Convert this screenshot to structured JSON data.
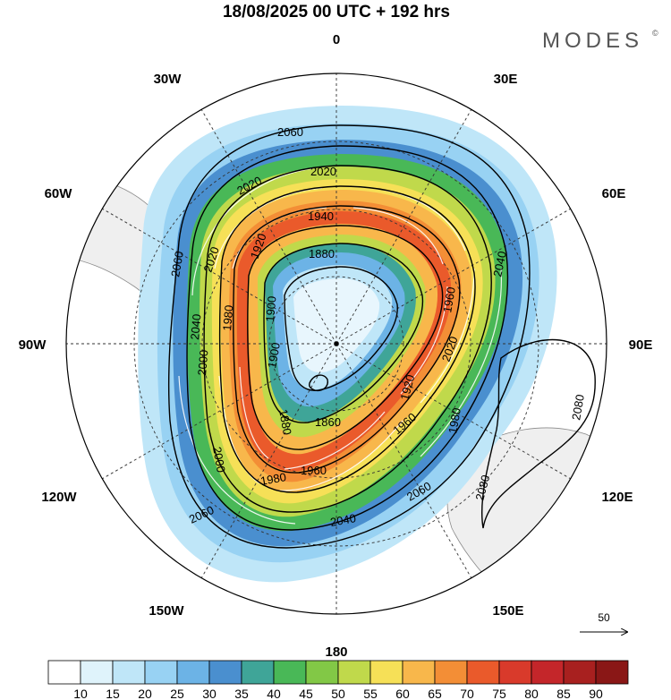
{
  "title": "18/08/2025  00 UTC  + 192 hrs",
  "brand": "MODES",
  "brand_mark": "©",
  "meridian_labels": {
    "top": "0",
    "bottom": "180",
    "left": "90W",
    "right": "90E",
    "upper_left_1": "30W",
    "upper_left_2": "60W",
    "upper_right_1": "30E",
    "upper_right_2": "60E",
    "lower_left_1": "120W",
    "lower_left_2": "150W",
    "lower_right_1": "120E",
    "lower_right_2": "150E"
  },
  "contour_labels": [
    "2060",
    "2020",
    "2020",
    "1940",
    "1920",
    "1880",
    "2060",
    "2020",
    "1980",
    "1900",
    "2040",
    "1960",
    "2020",
    "2040",
    "1900",
    "1920",
    "1880",
    "1860",
    "2000",
    "1960",
    "1980",
    "1960",
    "2060",
    "2040",
    "2000",
    "2060",
    "2080",
    "2080",
    "1980"
  ],
  "reference_vector": {
    "value": "50"
  },
  "colorbar": {
    "ticks": [
      "10",
      "15",
      "20",
      "25",
      "30",
      "35",
      "40",
      "45",
      "50",
      "55",
      "60",
      "65",
      "70",
      "75",
      "80",
      "85",
      "90"
    ],
    "colors": [
      "#ffffff",
      "#dff3fb",
      "#bfe6f8",
      "#98d2f3",
      "#6cb3e6",
      "#4a8fcf",
      "#3fa598",
      "#49b857",
      "#82c846",
      "#c0d94b",
      "#f6e057",
      "#f8b74b",
      "#f38e36",
      "#ea5a2b",
      "#d93a2b",
      "#c4262a",
      "#a8201f",
      "#8a1716"
    ]
  },
  "chart_data": {
    "type": "polar-stereographic map",
    "title": "18/08/2025  00 UTC  + 192 hrs",
    "variable": "wind speed (shaded) and geopotential height contours with wind vectors",
    "colorbar_levels": [
      10,
      15,
      20,
      25,
      30,
      35,
      40,
      45,
      50,
      55,
      60,
      65,
      70,
      75,
      80,
      85,
      90
    ],
    "contour_levels": [
      1860,
      1880,
      1900,
      1920,
      1940,
      1960,
      1980,
      2000,
      2020,
      2040,
      2060,
      2080
    ],
    "reference_vector": 50
  }
}
